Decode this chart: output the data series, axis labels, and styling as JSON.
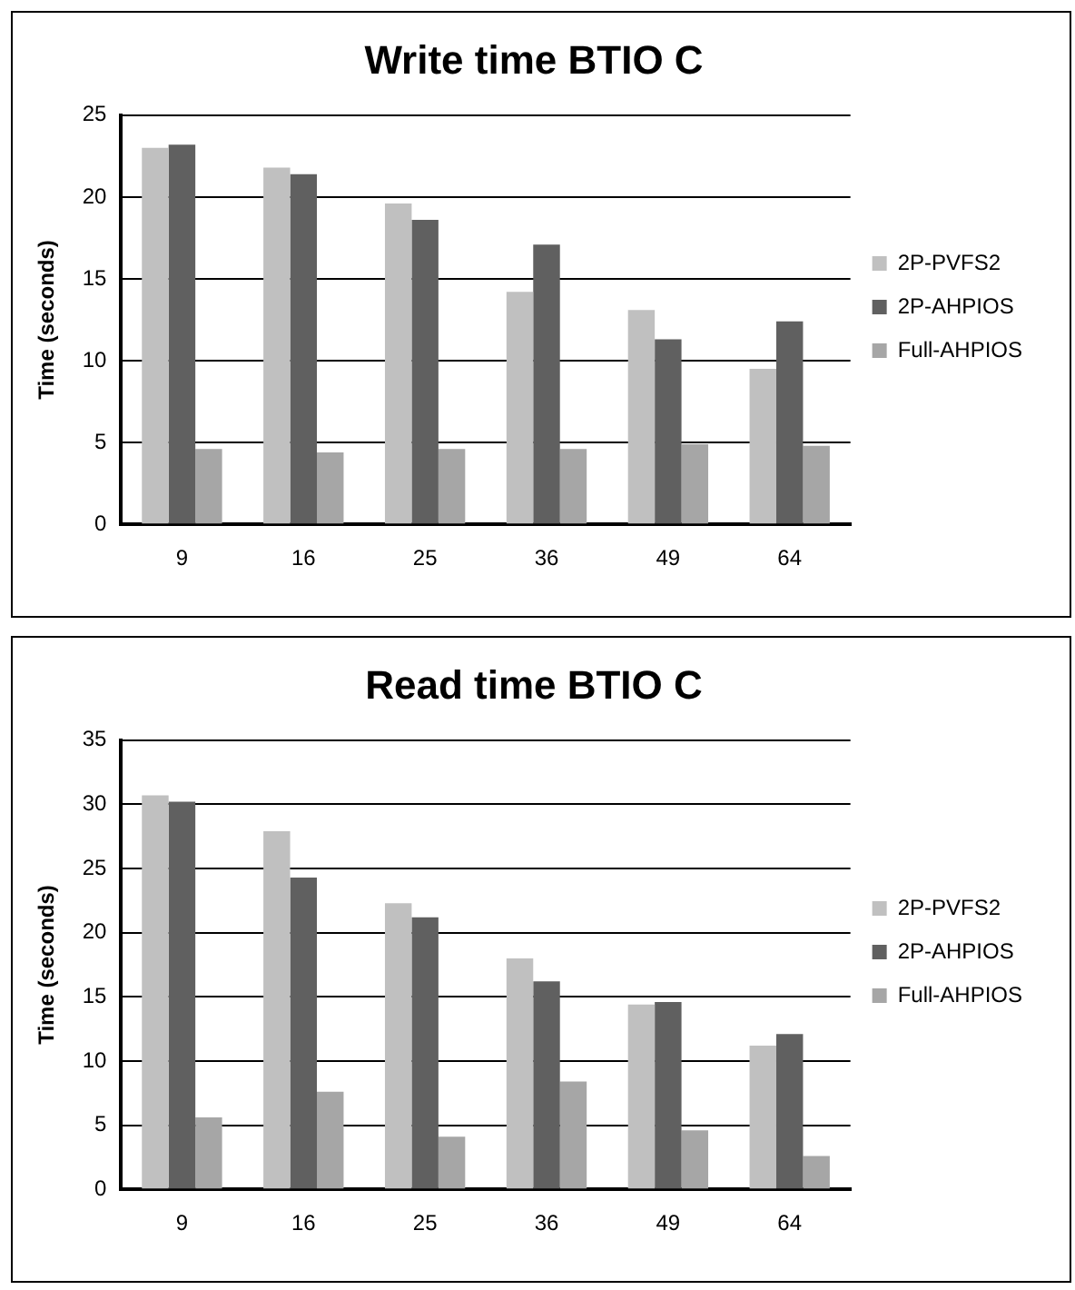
{
  "chart_data": [
    {
      "type": "bar",
      "title": "Write time BTIO C",
      "ylabel": "Time (seconds)",
      "categories": [
        "9",
        "16",
        "25",
        "36",
        "49",
        "64"
      ],
      "series": [
        {
          "name": "2P-PVFS2",
          "color": "#c0c0c0",
          "values": [
            23.0,
            21.8,
            19.6,
            14.2,
            13.1,
            9.5
          ]
        },
        {
          "name": "2P-AHPIOS",
          "color": "#606060",
          "values": [
            23.2,
            21.4,
            18.6,
            17.1,
            11.3,
            12.4
          ]
        },
        {
          "name": "Full-AHPIOS",
          "color": "#a6a6a6",
          "values": [
            4.6,
            4.4,
            4.6,
            4.6,
            4.9,
            4.8
          ]
        }
      ],
      "ylim": [
        0,
        25
      ],
      "yticks": [
        0,
        5,
        10,
        15,
        20,
        25
      ],
      "grid": "y",
      "legend": "right"
    },
    {
      "type": "bar",
      "title": "Read time BTIO C",
      "ylabel": "Time (seconds)",
      "categories": [
        "9",
        "16",
        "25",
        "36",
        "49",
        "64"
      ],
      "series": [
        {
          "name": "2P-PVFS2",
          "color": "#c0c0c0",
          "values": [
            30.7,
            27.9,
            22.3,
            18.0,
            14.4,
            11.2
          ]
        },
        {
          "name": "2P-AHPIOS",
          "color": "#606060",
          "values": [
            30.2,
            24.3,
            21.2,
            16.2,
            14.6,
            12.1
          ]
        },
        {
          "name": "Full-AHPIOS",
          "color": "#a6a6a6",
          "values": [
            5.6,
            7.6,
            4.1,
            8.4,
            4.6,
            2.6
          ]
        }
      ],
      "ylim": [
        0,
        35
      ],
      "yticks": [
        0,
        5,
        10,
        15,
        20,
        25,
        30,
        35
      ],
      "grid": "y",
      "legend": "right"
    }
  ]
}
